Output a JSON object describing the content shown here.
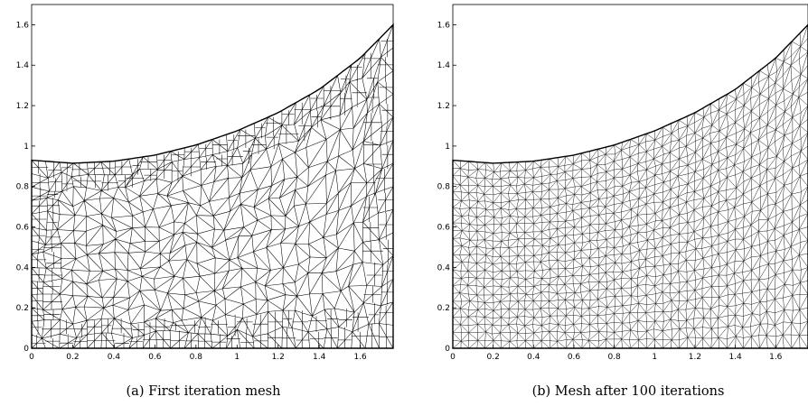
{
  "panels": [
    {
      "id": "a",
      "caption": "(a)  First iteration mesh",
      "mesh_style": "coarse-irregular",
      "x_ticks": [
        "0",
        "0.2",
        "0.4",
        "0.6",
        "0.8",
        "1",
        "1.2",
        "1.4",
        "1.6"
      ],
      "y_ticks": [
        "0",
        "0.2",
        "0.4",
        "0.6",
        "0.8",
        "1",
        "1.2",
        "1.4",
        "1.6"
      ]
    },
    {
      "id": "b",
      "caption": "(b)  Mesh after 100 iterations",
      "mesh_style": "fine-smoothed",
      "x_ticks": [
        "0",
        "0.2",
        "0.4",
        "0.6",
        "0.8",
        "1",
        "1.2",
        "1.4",
        "1.6"
      ],
      "y_ticks": [
        "0",
        "0.2",
        "0.4",
        "0.6",
        "0.8",
        "1",
        "1.2",
        "1.4",
        "1.6"
      ]
    }
  ],
  "domain": {
    "x_range": [
      0,
      1.76
    ],
    "y_range": [
      0,
      1.7
    ],
    "x_ticks": [
      0,
      0.2,
      0.4,
      0.6,
      0.8,
      1,
      1.2,
      1.4,
      1.6
    ],
    "y_ticks": [
      0,
      0.2,
      0.4,
      0.6,
      0.8,
      1,
      1.2,
      1.4,
      1.6
    ],
    "top_boundary": [
      [
        0,
        0.93
      ],
      [
        0.2,
        0.915
      ],
      [
        0.4,
        0.925
      ],
      [
        0.6,
        0.955
      ],
      [
        0.8,
        1.005
      ],
      [
        1.0,
        1.075
      ],
      [
        1.2,
        1.165
      ],
      [
        1.4,
        1.28
      ],
      [
        1.6,
        1.435
      ],
      [
        1.76,
        1.6
      ]
    ]
  },
  "colors": {
    "line": "#000000",
    "background": "#ffffff"
  }
}
